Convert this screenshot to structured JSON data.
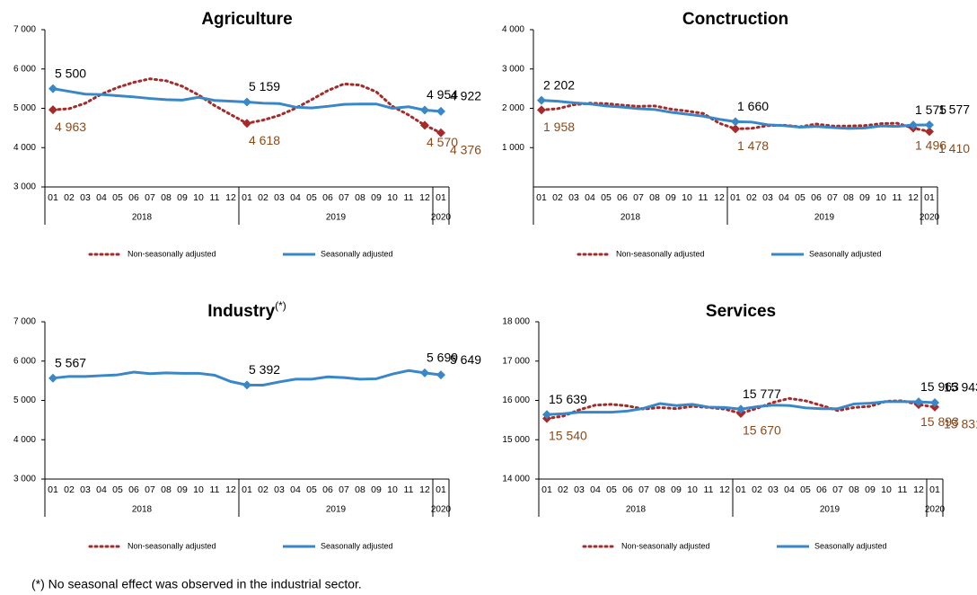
{
  "chart_data": [
    {
      "type": "line",
      "title": "Agriculture",
      "categories": [
        "01",
        "02",
        "03",
        "04",
        "05",
        "06",
        "07",
        "08",
        "09",
        "10",
        "11",
        "12",
        "01",
        "02",
        "03",
        "04",
        "05",
        "06",
        "07",
        "08",
        "09",
        "10",
        "11",
        "12",
        "01"
      ],
      "years": [
        "2018",
        "2019",
        "2020"
      ],
      "ylim": [
        3000,
        7000
      ],
      "yticks": [
        {
          "value": 3000,
          "label": "3 000"
        },
        {
          "value": 4000,
          "label": "4 000"
        },
        {
          "value": 5000,
          "label": "5 000"
        },
        {
          "value": 6000,
          "label": "6 000"
        },
        {
          "value": 7000,
          "label": "7 000"
        }
      ],
      "legend": "bottom",
      "series": [
        {
          "name": "Non-seasonally adjusted",
          "color": "#a52a2a",
          "style": "dotted",
          "label_color": "#8b4a1c",
          "values": [
            4963,
            4990,
            5130,
            5360,
            5530,
            5660,
            5750,
            5700,
            5560,
            5340,
            5070,
            4840,
            4618,
            4700,
            4820,
            5000,
            5220,
            5450,
            5620,
            5590,
            5420,
            5050,
            4830,
            4570,
            4376
          ],
          "value_labels": [
            "4 963",
            null,
            null,
            null,
            null,
            null,
            null,
            null,
            null,
            null,
            null,
            null,
            "4 618",
            null,
            null,
            null,
            null,
            null,
            null,
            null,
            null,
            null,
            null,
            "4 570",
            "4 376"
          ]
        },
        {
          "name": "Seasonally adjusted",
          "color": "#3a87c8",
          "style": "solid",
          "label_color": "#000000",
          "values": [
            5500,
            5430,
            5360,
            5350,
            5320,
            5290,
            5250,
            5220,
            5210,
            5280,
            5200,
            5180,
            5159,
            5130,
            5120,
            5030,
            5010,
            5050,
            5100,
            5110,
            5110,
            5000,
            5040,
            4954,
            4922
          ],
          "value_labels": [
            "5 500",
            null,
            null,
            null,
            null,
            null,
            null,
            null,
            null,
            null,
            null,
            null,
            "5 159",
            null,
            null,
            null,
            null,
            null,
            null,
            null,
            null,
            null,
            null,
            "4 954",
            "4 922"
          ]
        }
      ]
    },
    {
      "type": "line",
      "title": "Conctruction",
      "categories": [
        "01",
        "02",
        "03",
        "04",
        "05",
        "06",
        "07",
        "08",
        "09",
        "10",
        "11",
        "12",
        "01",
        "02",
        "03",
        "04",
        "05",
        "06",
        "07",
        "08",
        "09",
        "10",
        "11",
        "12",
        "01"
      ],
      "years": [
        "2018",
        "2019",
        "2020"
      ],
      "ylim": [
        0,
        4000
      ],
      "yticks": [
        {
          "value": 1000,
          "label": "1 000"
        },
        {
          "value": 2000,
          "label": "2 000"
        },
        {
          "value": 3000,
          "label": "3 000"
        },
        {
          "value": 4000,
          "label": "4 000"
        }
      ],
      "legend": "bottom",
      "series": [
        {
          "name": "Non-seasonally adjusted",
          "color": "#a52a2a",
          "style": "dotted",
          "label_color": "#8b4a1c",
          "values": [
            1958,
            1990,
            2090,
            2130,
            2120,
            2080,
            2050,
            2060,
            1980,
            1930,
            1870,
            1620,
            1478,
            1490,
            1560,
            1570,
            1530,
            1600,
            1550,
            1550,
            1560,
            1610,
            1620,
            1496,
            1410
          ],
          "value_labels": [
            "1 958",
            null,
            null,
            null,
            null,
            null,
            null,
            null,
            null,
            null,
            null,
            null,
            "1 478",
            null,
            null,
            null,
            null,
            null,
            null,
            null,
            null,
            null,
            null,
            "1 496",
            "1 410"
          ]
        },
        {
          "name": "Seasonally adjusted",
          "color": "#3a87c8",
          "style": "solid",
          "label_color": "#000000",
          "values": [
            2202,
            2180,
            2140,
            2110,
            2060,
            2030,
            1990,
            1970,
            1900,
            1850,
            1800,
            1720,
            1660,
            1650,
            1580,
            1560,
            1520,
            1540,
            1510,
            1490,
            1500,
            1550,
            1540,
            1575,
            1577
          ],
          "value_labels": [
            "2 202",
            null,
            null,
            null,
            null,
            null,
            null,
            null,
            null,
            null,
            null,
            null,
            "1 660",
            null,
            null,
            null,
            null,
            null,
            null,
            null,
            null,
            null,
            null,
            "1 575",
            "1 577"
          ]
        }
      ]
    },
    {
      "type": "line",
      "title": "Industry",
      "title_note": "(*)",
      "categories": [
        "01",
        "02",
        "03",
        "04",
        "05",
        "06",
        "07",
        "08",
        "09",
        "10",
        "11",
        "12",
        "01",
        "02",
        "03",
        "04",
        "05",
        "06",
        "07",
        "08",
        "09",
        "10",
        "11",
        "12",
        "01"
      ],
      "years": [
        "2018",
        "2019",
        "2020"
      ],
      "ylim": [
        3000,
        7000
      ],
      "yticks": [
        {
          "value": 3000,
          "label": "3 000"
        },
        {
          "value": 4000,
          "label": "4 000"
        },
        {
          "value": 5000,
          "label": "5 000"
        },
        {
          "value": 6000,
          "label": "6 000"
        },
        {
          "value": 7000,
          "label": "7 000"
        }
      ],
      "legend": "bottom",
      "legend_entries": [
        {
          "name": "Non-seasonally adjusted",
          "color": "#a52a2a",
          "style": "dotted"
        }
      ],
      "series": [
        {
          "name": "Seasonally adjusted",
          "color": "#3a87c8",
          "style": "solid",
          "label_color": "#000000",
          "values": [
            5567,
            5610,
            5610,
            5630,
            5650,
            5720,
            5680,
            5700,
            5690,
            5690,
            5640,
            5480,
            5392,
            5390,
            5470,
            5540,
            5540,
            5600,
            5580,
            5540,
            5550,
            5670,
            5760,
            5699,
            5649
          ],
          "value_labels": [
            "5 567",
            null,
            null,
            null,
            null,
            null,
            null,
            null,
            null,
            null,
            null,
            null,
            "5 392",
            null,
            null,
            null,
            null,
            null,
            null,
            null,
            null,
            null,
            null,
            "5 699",
            "5 649"
          ]
        }
      ]
    },
    {
      "type": "line",
      "title": "Services",
      "categories": [
        "01",
        "02",
        "03",
        "04",
        "05",
        "06",
        "07",
        "08",
        "09",
        "10",
        "11",
        "12",
        "01",
        "02",
        "03",
        "04",
        "05",
        "06",
        "07",
        "08",
        "09",
        "10",
        "11",
        "12",
        "01"
      ],
      "years": [
        "2018",
        "2019",
        "2020"
      ],
      "ylim": [
        14000,
        18000
      ],
      "yticks": [
        {
          "value": 14000,
          "label": "14 000"
        },
        {
          "value": 15000,
          "label": "15 000"
        },
        {
          "value": 16000,
          "label": "16 000"
        },
        {
          "value": 17000,
          "label": "17 000"
        },
        {
          "value": 18000,
          "label": "18 000"
        }
      ],
      "legend": "bottom",
      "series": [
        {
          "name": "Non-seasonally adjusted",
          "color": "#a52a2a",
          "style": "dotted",
          "label_color": "#8b4a1c",
          "values": [
            15540,
            15600,
            15760,
            15880,
            15900,
            15860,
            15780,
            15820,
            15790,
            15850,
            15820,
            15780,
            15670,
            15800,
            15950,
            16050,
            15990,
            15870,
            15740,
            15820,
            15850,
            15980,
            15990,
            15893,
            15831
          ],
          "value_labels": [
            "15 540",
            null,
            null,
            null,
            null,
            null,
            null,
            null,
            null,
            null,
            null,
            null,
            "15 670",
            null,
            null,
            null,
            null,
            null,
            null,
            null,
            null,
            null,
            null,
            "15 893",
            "15 831"
          ]
        },
        {
          "name": "Seasonally adjusted",
          "color": "#3a87c8",
          "style": "solid",
          "label_color": "#000000",
          "values": [
            15639,
            15660,
            15700,
            15700,
            15700,
            15730,
            15800,
            15920,
            15870,
            15900,
            15830,
            15820,
            15777,
            15840,
            15880,
            15870,
            15810,
            15790,
            15790,
            15910,
            15930,
            15970,
            15970,
            15963,
            15943
          ],
          "value_labels": [
            "15 639",
            null,
            null,
            null,
            null,
            null,
            null,
            null,
            null,
            null,
            null,
            null,
            "15 777",
            null,
            null,
            null,
            null,
            null,
            null,
            null,
            null,
            null,
            null,
            "15 963",
            "15 943"
          ]
        }
      ]
    }
  ],
  "footnote": "(*) No seasonal effect was observed in the industrial sector."
}
